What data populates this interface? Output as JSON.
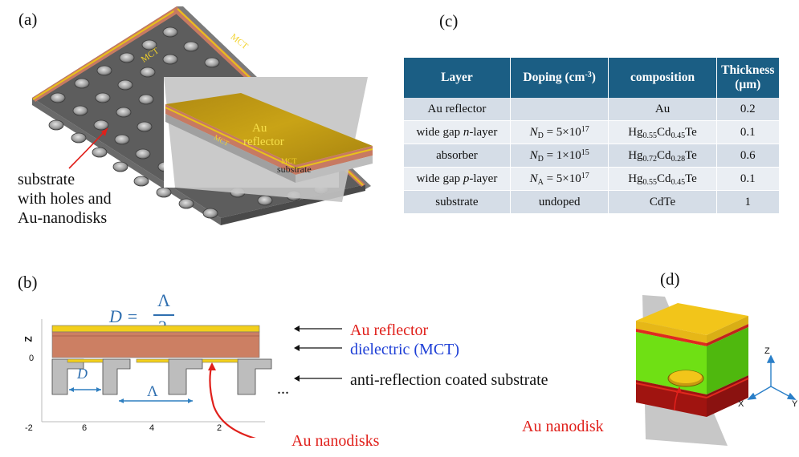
{
  "panels": {
    "a": "(a)",
    "b": "(b)",
    "c": "(c)",
    "d": "(d)"
  },
  "panel_a": {
    "mct_1": "MCT",
    "mct_2": "MCT",
    "inset_au": "Au",
    "inset_reflector": "reflector",
    "inset_mct_1": "MCT",
    "inset_mct_2": "MCT",
    "inset_substrate": "substrate",
    "callout_line1": "substrate",
    "callout_line2": "with holes and",
    "callout_line3": "Au-nanodisks"
  },
  "panel_b": {
    "equation_lhs": "D =",
    "equation_num": "Λ",
    "equation_den": "2",
    "z_axis": "Z",
    "z_zero": "0",
    "x_ticks": [
      "-2",
      "6",
      "4",
      "2"
    ],
    "dim_d": "D",
    "dim_lambda": "Λ",
    "ellipsis": "...",
    "label_au_reflector": "Au reflector",
    "label_dielectric": "dielectric (MCT)",
    "label_substrate": "anti-reflection coated substrate",
    "label_nanodisks": "Au nanodisks"
  },
  "table": {
    "headers": {
      "layer": "Layer",
      "doping": "Doping (cm",
      "doping_exp": "-3",
      "doping_close": ")",
      "composition": "composition",
      "thickness_1": "Thickness",
      "thickness_2": "(μm)"
    },
    "rows": [
      {
        "layer": "Au reflector",
        "doping": "",
        "comp": "Au",
        "thickness": "0.2"
      },
      {
        "layer_pre": "wide gap ",
        "layer_it": "n",
        "layer_post": "-layer",
        "doping_var": "N",
        "doping_sub": "D",
        "doping_val": " = 5×10",
        "doping_exp": "17",
        "comp_a": "Hg",
        "comp_a_sub": "0.55",
        "comp_b": "Cd",
        "comp_b_sub": "0.45",
        "comp_c": "Te",
        "thickness": "0.1"
      },
      {
        "layer": "absorber",
        "doping_var": "N",
        "doping_sub": "D",
        "doping_val": " = 1×10",
        "doping_exp": "15",
        "comp_a": "Hg",
        "comp_a_sub": "0.72",
        "comp_b": "Cd",
        "comp_b_sub": "0.28",
        "comp_c": "Te",
        "thickness": "0.6"
      },
      {
        "layer_pre": "wide gap ",
        "layer_it": "p",
        "layer_post": "-layer",
        "doping_var": "N",
        "doping_sub": "A",
        "doping_val": " = 5×10",
        "doping_exp": "17",
        "comp_a": "Hg",
        "comp_a_sub": "0.55",
        "comp_b": "Cd",
        "comp_b_sub": "0.45",
        "comp_c": "Te",
        "thickness": "0.1"
      },
      {
        "layer": "substrate",
        "doping": "undoped",
        "comp": "CdTe",
        "thickness": "1"
      }
    ]
  },
  "panel_d": {
    "axis_z": "Z",
    "axis_x": "X",
    "axis_y": "Y",
    "label_nanodisk": "Au nanodisk"
  },
  "colors": {
    "gold": "#e8c21a",
    "mct": "#c77a62",
    "substrate_gray": "#6e6e6e",
    "red_label": "#e0201b",
    "blue_label": "#1e3fd6",
    "table_header": "#1b5e84",
    "green_layer": "#6fe014"
  }
}
